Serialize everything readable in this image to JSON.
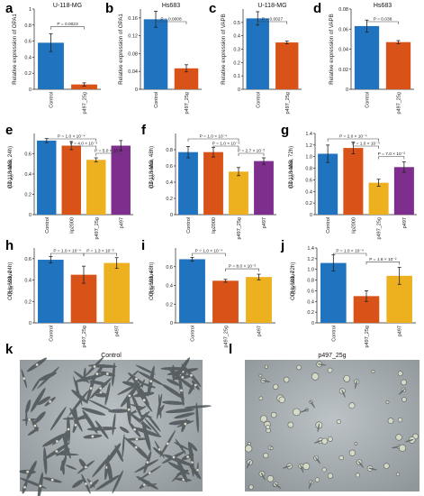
{
  "colors": {
    "blue": "#1f73bf",
    "orange": "#d95319",
    "yellow": "#edb120",
    "purple": "#7e2f8e"
  },
  "panels": [
    {
      "id": "a",
      "letter": "a"
    },
    {
      "id": "b",
      "letter": "b"
    },
    {
      "id": "c",
      "letter": "c"
    },
    {
      "id": "d",
      "letter": "d"
    },
    {
      "id": "e",
      "letter": "e"
    },
    {
      "id": "f",
      "letter": "f"
    },
    {
      "id": "g",
      "letter": "g"
    },
    {
      "id": "h",
      "letter": "h"
    },
    {
      "id": "i",
      "letter": "i"
    },
    {
      "id": "j",
      "letter": "j"
    },
    {
      "id": "k",
      "letter": "k",
      "title": "Control"
    },
    {
      "id": "l",
      "letter": "l",
      "title": "p497_25g"
    }
  ],
  "chart_data": [
    {
      "id": "a",
      "type": "bar",
      "title": "U-118-MG",
      "ylabel": "Relative expression of OPA1",
      "categories": [
        "Control",
        "p497_25g"
      ],
      "values": [
        0.58,
        0.06
      ],
      "errors": [
        0.11,
        0.02
      ],
      "colors": [
        "blue",
        "orange"
      ],
      "ylim": [
        0,
        1
      ],
      "yticks": [
        "0",
        "0.2",
        "0.4",
        "0.6",
        "0.8",
        "1"
      ],
      "pvalues": [
        {
          "text": "P = 0.0023",
          "from": 0,
          "to": 1
        }
      ]
    },
    {
      "id": "b",
      "type": "bar",
      "title": "Hs683",
      "ylabel": "Relative expression of OPA1",
      "categories": [
        "Control",
        "p497_25g"
      ],
      "values": [
        0.157,
        0.047
      ],
      "errors": [
        0.018,
        0.008
      ],
      "colors": [
        "blue",
        "orange"
      ],
      "ylim": [
        0,
        0.18
      ],
      "yticks": [
        "0",
        "0.04",
        "0.08",
        "0.12",
        "0.16"
      ],
      "pvalues": [
        {
          "text": "P = 0.0008",
          "from": 0,
          "to": 1
        }
      ]
    },
    {
      "id": "c",
      "type": "bar",
      "title": "U-118-MG",
      "ylabel": "Relative expression of VAPB",
      "categories": [
        "Control",
        "p497_25g"
      ],
      "values": [
        0.53,
        0.35
      ],
      "errors": [
        0.05,
        0.01
      ],
      "colors": [
        "blue",
        "orange"
      ],
      "ylim": [
        0,
        0.6
      ],
      "yticks": [
        "0",
        "0.1",
        "0.2",
        "0.3",
        "0.4",
        "0.5"
      ],
      "pvalues": [
        {
          "text": "P = 0.0027",
          "from": 0,
          "to": 1
        }
      ]
    },
    {
      "id": "d",
      "type": "bar",
      "title": "Hs683",
      "ylabel": "Relative expression of VAPB",
      "categories": [
        "Control",
        "p497_25g"
      ],
      "values": [
        0.063,
        0.047
      ],
      "errors": [
        0.006,
        0.0015
      ],
      "colors": [
        "blue",
        "orange"
      ],
      "ylim": [
        0,
        0.08
      ],
      "yticks": [
        "0",
        "0.02",
        "0.04",
        "0.06",
        "0.08"
      ],
      "pvalues": [
        {
          "text": "P = 0.038",
          "from": 0,
          "to": 1
        }
      ]
    },
    {
      "id": "e",
      "type": "bar",
      "title": "",
      "ylabel": "OD450 value (U-118-MG, 24h)",
      "categories": [
        "Control",
        "lip2000",
        "p497_25g",
        "p497"
      ],
      "values": [
        0.73,
        0.68,
        0.54,
        0.68
      ],
      "errors": [
        0.02,
        0.04,
        0.02,
        0.05
      ],
      "colors": [
        "blue",
        "orange",
        "yellow",
        "purple"
      ],
      "ylim": [
        0,
        0.8
      ],
      "yticks": [
        "0",
        "0.2",
        "0.4",
        "0.6"
      ],
      "pvalues": [
        {
          "text": "P = 1.0 × 10⁻⁴",
          "from": 0,
          "to": 2
        },
        {
          "text": "P = 4.0 × 10⁻⁴",
          "from": 1,
          "to": 2
        },
        {
          "text": "P = 5.0 × 10⁻⁴",
          "from": 2,
          "to": 3
        }
      ]
    },
    {
      "id": "f",
      "type": "bar",
      "title": "",
      "ylabel": "OD450 value (U-118-MG, 48h)",
      "categories": [
        "Control",
        "lip2000",
        "p497_25g",
        "p497"
      ],
      "values": [
        0.77,
        0.77,
        0.53,
        0.66
      ],
      "errors": [
        0.07,
        0.06,
        0.05,
        0.04
      ],
      "colors": [
        "blue",
        "orange",
        "yellow",
        "purple"
      ],
      "ylim": [
        0,
        1.0
      ],
      "yticks": [
        "0",
        "0.2",
        "0.4",
        "0.6",
        "0.8"
      ],
      "pvalues": [
        {
          "text": "P = 1.0 × 10⁻⁴",
          "from": 0,
          "to": 2
        },
        {
          "text": "P = 1.0 × 10⁻⁴",
          "from": 1,
          "to": 2
        },
        {
          "text": "P = 2.7 × 10⁻²",
          "from": 2,
          "to": 3
        }
      ]
    },
    {
      "id": "g",
      "type": "bar",
      "title": "",
      "ylabel": "OD450 value (U-118-MG, 72h)",
      "categories": [
        "Control",
        "lip2000",
        "p497_25g",
        "p497"
      ],
      "values": [
        1.05,
        1.15,
        0.55,
        0.82
      ],
      "errors": [
        0.15,
        0.1,
        0.06,
        0.09
      ],
      "colors": [
        "blue",
        "orange",
        "yellow",
        "purple"
      ],
      "ylim": [
        0,
        1.4
      ],
      "yticks": [
        "0",
        "0.2",
        "0.4",
        "0.6",
        "0.8",
        "1.0",
        "1.2",
        "1.4"
      ],
      "pvalues": [
        {
          "text": "P = 2.0 × 10⁻⁴",
          "from": 0,
          "to": 2
        },
        {
          "text": "P = 1.0 × 10⁻⁴",
          "from": 1,
          "to": 2
        },
        {
          "text": "P = 7.0 × 10⁻³",
          "from": 2,
          "to": 3
        }
      ]
    },
    {
      "id": "h",
      "type": "bar",
      "title": "",
      "ylabel": "OD450 value (Hs683, 24h)",
      "categories": [
        "Control",
        "p497_25g",
        "p497"
      ],
      "values": [
        0.59,
        0.45,
        0.56
      ],
      "errors": [
        0.03,
        0.08,
        0.05
      ],
      "colors": [
        "blue",
        "orange",
        "yellow"
      ],
      "ylim": [
        0,
        0.7
      ],
      "yticks": [
        "0",
        "0.2",
        "0.4",
        "0.6"
      ],
      "pvalues": [
        {
          "text": "P = 1.0 × 10⁻⁴",
          "from": 0,
          "to": 1
        },
        {
          "text": "P = 1.3 × 10⁻²",
          "from": 1,
          "to": 2
        }
      ]
    },
    {
      "id": "i",
      "type": "bar",
      "title": "",
      "ylabel": "OD450 value (Hs683, 48h)",
      "categories": [
        "Control",
        "p497_25g",
        "p497"
      ],
      "values": [
        0.68,
        0.45,
        0.49
      ],
      "errors": [
        0.02,
        0.015,
        0.03
      ],
      "colors": [
        "blue",
        "orange",
        "yellow"
      ],
      "ylim": [
        0,
        0.8
      ],
      "yticks": [
        "0",
        "0.2",
        "0.4",
        "0.6"
      ],
      "pvalues": [
        {
          "text": "P = 1.0 × 10⁻⁴",
          "from": 0,
          "to": 1
        },
        {
          "text": "P = 8.0 × 10⁻²",
          "from": 1,
          "to": 2
        }
      ]
    },
    {
      "id": "j",
      "type": "bar",
      "title": "",
      "ylabel": "OD450 value (Hs683, 72h)",
      "categories": [
        "Control",
        "p497_25g",
        "p497"
      ],
      "values": [
        1.12,
        0.5,
        0.88
      ],
      "errors": [
        0.15,
        0.1,
        0.16
      ],
      "colors": [
        "blue",
        "orange",
        "yellow"
      ],
      "ylim": [
        0,
        1.4
      ],
      "yticks": [
        "0",
        "0.2",
        "0.4",
        "0.6",
        "0.8",
        "1.0",
        "1.2",
        "1.4"
      ],
      "pvalues": [
        {
          "text": "P = 1.0 × 10⁻⁴",
          "from": 0,
          "to": 1
        },
        {
          "text": "P = 1.8 × 10⁻²",
          "from": 1,
          "to": 2
        }
      ]
    }
  ]
}
